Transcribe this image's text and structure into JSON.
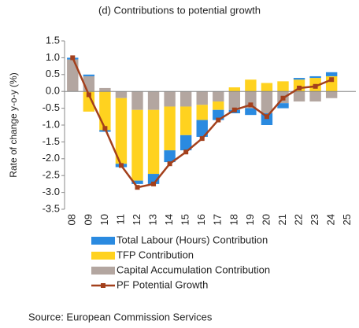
{
  "chart_data": {
    "type": "bar_line",
    "title": "(d) Contributions to potential growth",
    "y_label": "Rate of change y-o-y (%)",
    "source": "Source: European Commission Services",
    "categories": [
      "08",
      "09",
      "10",
      "11",
      "12",
      "13",
      "14",
      "15",
      "16",
      "17",
      "18",
      "19",
      "20",
      "21",
      "22",
      "23",
      "24",
      "25"
    ],
    "series": [
      {
        "name": "Total Labour (Hours) Contribution",
        "color": "#2a8ae0",
        "values": [
          0.05,
          0.05,
          -0.05,
          -0.1,
          -0.1,
          -0.3,
          -0.35,
          -0.45,
          -0.5,
          -0.3,
          -0.1,
          -0.2,
          -0.35,
          -0.15,
          0.05,
          0.05,
          0.12,
          null
        ]
      },
      {
        "name": "TFP Contribution",
        "color": "#ffd21f",
        "values": [
          0.0,
          -0.6,
          -1.15,
          -1.95,
          -2.1,
          -1.9,
          -1.3,
          -0.85,
          -0.45,
          -0.25,
          0.12,
          0.35,
          0.25,
          0.3,
          0.35,
          0.4,
          0.45,
          null
        ]
      },
      {
        "name": "Capital Accumulation Contribution",
        "color": "#b3a6a0",
        "values": [
          0.95,
          0.45,
          0.1,
          -0.2,
          -0.55,
          -0.55,
          -0.45,
          -0.45,
          -0.4,
          -0.3,
          -0.55,
          -0.5,
          -0.65,
          -0.35,
          -0.3,
          -0.3,
          -0.2,
          null
        ]
      },
      {
        "name": "PF Potential Growth",
        "color": "#a3401c",
        "line": true,
        "values": [
          1.0,
          -0.1,
          -1.1,
          -2.2,
          -2.85,
          -2.75,
          -2.15,
          -1.8,
          -1.4,
          -0.85,
          -0.55,
          -0.4,
          -0.75,
          -0.2,
          0.1,
          0.15,
          0.35,
          null
        ]
      }
    ],
    "ylim": [
      -3.5,
      1.5
    ],
    "yticks": [
      1.5,
      {
        "value": 1.0,
        "label": "1.0"
      },
      0.5,
      {
        "value": 0.0,
        "label": "0.0"
      },
      -0.5,
      {
        "value": -1.0,
        "label": "-1.0"
      },
      -1.5,
      {
        "value": -2.0,
        "label": "-2.0"
      },
      -2.5,
      {
        "value": -3.0,
        "label": "-3.0"
      },
      -3.5
    ],
    "grid": false
  }
}
